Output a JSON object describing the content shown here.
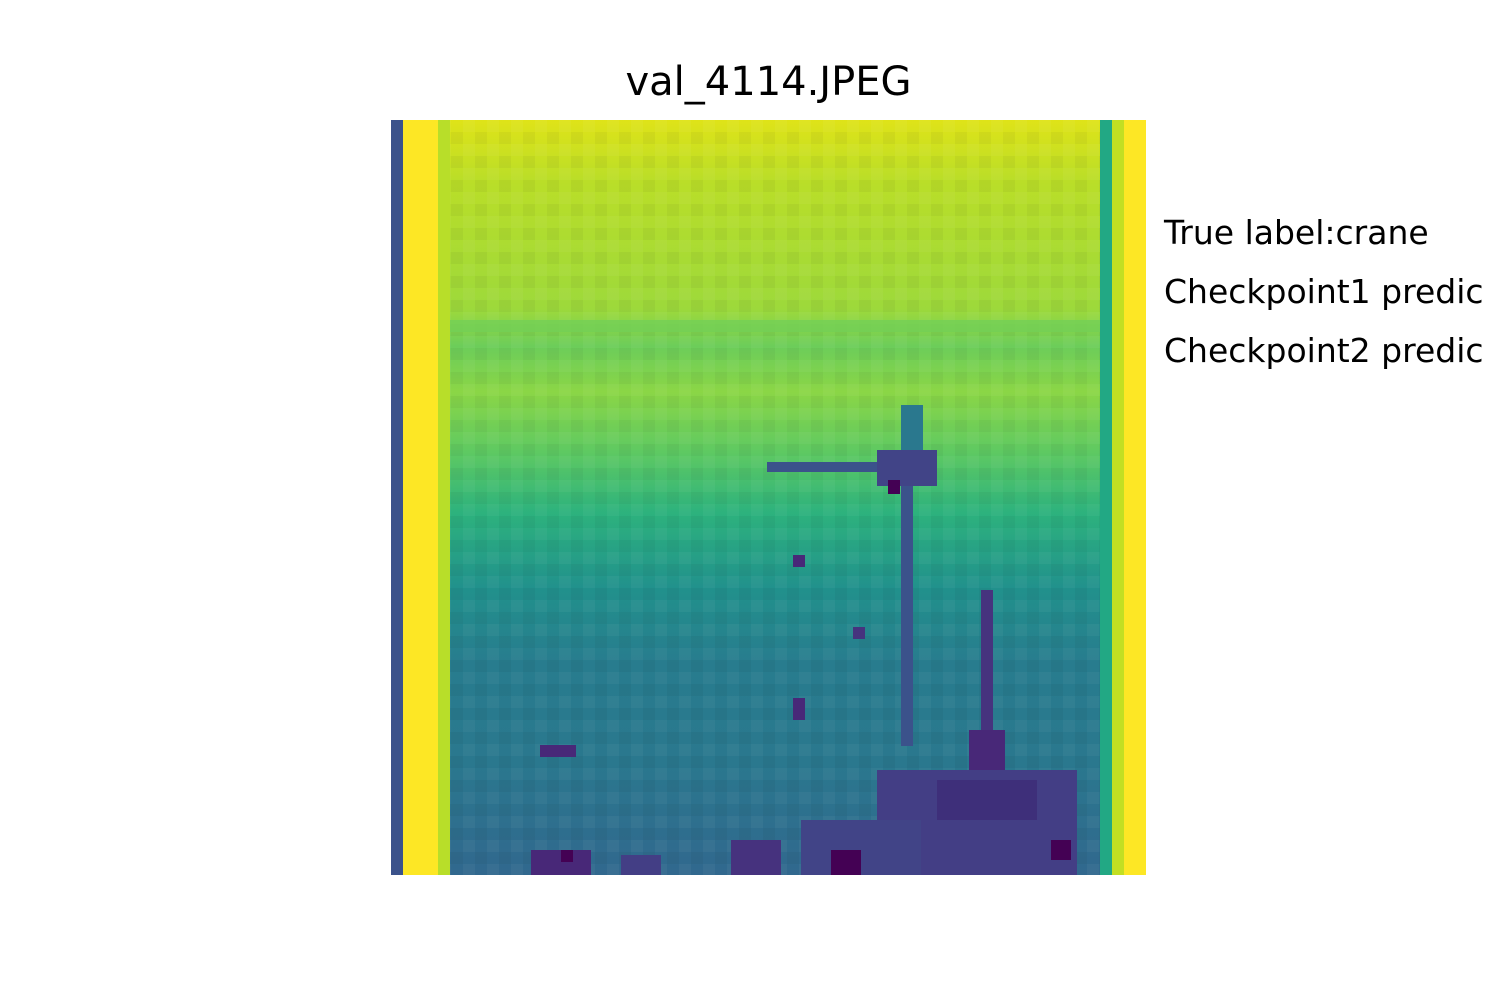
{
  "title": "val_4114.JPEG",
  "info": {
    "true_label": "True label:crane",
    "checkpoint1": "Checkpoint1 predic",
    "checkpoint2": "Checkpoint2 predic"
  },
  "image": {
    "description": "low-resolution grayscale photo rendered with viridis colormap",
    "colormap": [
      "#440154",
      "#3b528b",
      "#21918c",
      "#5ec962",
      "#fde725"
    ]
  }
}
